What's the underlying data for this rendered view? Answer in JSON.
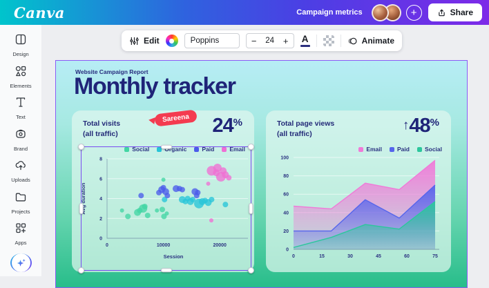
{
  "topbar": {
    "logo": "Canva",
    "doc_title": "Campaign metrics",
    "share_label": "Share",
    "add_collaborator_label": "+"
  },
  "toolbar": {
    "edit_label": "Edit",
    "font_name": "Poppins",
    "font_size": "24",
    "decrease_label": "−",
    "increase_label": "+",
    "text_color_label": "A",
    "animate_label": "Animate"
  },
  "sidebar": {
    "items": [
      {
        "label": "Design",
        "icon": "design-icon"
      },
      {
        "label": "Elements",
        "icon": "elements-icon"
      },
      {
        "label": "Text",
        "icon": "text-icon"
      },
      {
        "label": "Brand",
        "icon": "brand-icon"
      },
      {
        "label": "Uploads",
        "icon": "uploads-icon"
      },
      {
        "label": "Projects",
        "icon": "projects-icon"
      },
      {
        "label": "Apps",
        "icon": "apps-icon"
      }
    ]
  },
  "canvas": {
    "eyebrow": "Website Campaign Report",
    "title": "Monthly tracker",
    "collaborator": {
      "name": "Sareena",
      "color": "#f43b50"
    },
    "left_card": {
      "title_line1": "Total visits",
      "title_line2": "(all traffic)",
      "metric": "24",
      "metric_suffix": "%"
    },
    "right_card": {
      "title_line1": "Total page views",
      "title_line2": "(all traffic)",
      "metric_arrow": "↑",
      "metric": "48",
      "metric_suffix": "%"
    }
  },
  "colors": {
    "selection_purple": "#7a4bf0",
    "navy_text": "#1f2478",
    "canvas_gradient_top": "#b7edf5",
    "canvas_gradient_bottom": "#28bd8a"
  },
  "chart_data": [
    {
      "type": "scatter",
      "title": "Total visits (all traffic)",
      "xlabel": "Session",
      "ylabel": "Avg duration",
      "xlim": [
        0,
        25000
      ],
      "ylim": [
        0,
        8
      ],
      "xticks": [
        0,
        10000,
        20000
      ],
      "yticks": [
        0,
        2,
        4,
        6,
        8
      ],
      "legend_position": "top-right",
      "grid": true,
      "series": [
        {
          "name": "Social",
          "color": "#43d6a4",
          "points": [
            [
              2650,
              2.8,
              3
            ],
            [
              3700,
              2.2,
              4
            ],
            [
              5400,
              2.6,
              5
            ],
            [
              5800,
              2.8,
              4
            ],
            [
              6400,
              3.0,
              6
            ],
            [
              6700,
              3.2,
              4
            ],
            [
              7200,
              2.3,
              4
            ],
            [
              8850,
              2.8,
              3
            ],
            [
              9800,
              2.9,
              4
            ],
            [
              10000,
              5.9,
              3
            ],
            [
              10100,
              2.2,
              4
            ],
            [
              10600,
              2.5,
              3
            ]
          ]
        },
        {
          "name": "Organic",
          "color": "#28c5d8",
          "points": [
            [
              10200,
              3.9,
              4
            ],
            [
              13350,
              3.9,
              5
            ],
            [
              13900,
              3.7,
              4
            ],
            [
              14300,
              4.0,
              4
            ],
            [
              14800,
              3.7,
              5
            ],
            [
              15200,
              3.9,
              4
            ],
            [
              16300,
              3.5,
              7
            ],
            [
              16900,
              3.7,
              5
            ],
            [
              17400,
              3.8,
              4
            ],
            [
              17950,
              3.6,
              5
            ],
            [
              18550,
              3.9,
              4
            ],
            [
              21000,
              3.4,
              4
            ]
          ]
        },
        {
          "name": "Paid",
          "color": "#4c5cea",
          "points": [
            [
              6040,
              4.3,
              4
            ],
            [
              9200,
              4.6,
              4
            ],
            [
              9700,
              4.9,
              5
            ],
            [
              10000,
              5.1,
              4
            ],
            [
              10400,
              4.7,
              5
            ],
            [
              10700,
              4.3,
              4
            ],
            [
              12250,
              5.0,
              5
            ],
            [
              12850,
              5.0,
              4
            ],
            [
              13350,
              4.9,
              4
            ],
            [
              15600,
              4.7,
              5
            ],
            [
              15900,
              4.3,
              4
            ],
            [
              16100,
              4.6,
              4
            ]
          ]
        },
        {
          "name": "Email",
          "color": "#ef6fd4",
          "points": [
            [
              17950,
              5.5,
              3
            ],
            [
              18550,
              6.8,
              7
            ],
            [
              19400,
              6.6,
              5
            ],
            [
              19600,
              7.1,
              6
            ],
            [
              20200,
              6.2,
              7
            ],
            [
              20600,
              6.8,
              5
            ],
            [
              21000,
              6.4,
              5
            ],
            [
              21600,
              6.1,
              4
            ],
            [
              18500,
              1.8,
              3
            ]
          ]
        }
      ]
    },
    {
      "type": "area",
      "title": "Total page views (all traffic)",
      "x": [
        0,
        20,
        38,
        56,
        75
      ],
      "xticks": [
        0,
        15,
        30,
        45,
        60,
        75
      ],
      "yticks": [
        0,
        20,
        40,
        60,
        80,
        100
      ],
      "xlim": [
        0,
        75
      ],
      "ylim": [
        0,
        100
      ],
      "legend_position": "top-right",
      "grid": true,
      "series": [
        {
          "name": "Email",
          "color": "#f07ad8",
          "values": [
            47,
            44,
            72,
            65,
            97
          ]
        },
        {
          "name": "Paid",
          "color": "#5565ec",
          "values": [
            20,
            20,
            54,
            34,
            70
          ]
        },
        {
          "name": "Social",
          "color": "#2cc79c",
          "values": [
            2,
            13,
            27,
            22,
            52
          ]
        }
      ]
    }
  ]
}
